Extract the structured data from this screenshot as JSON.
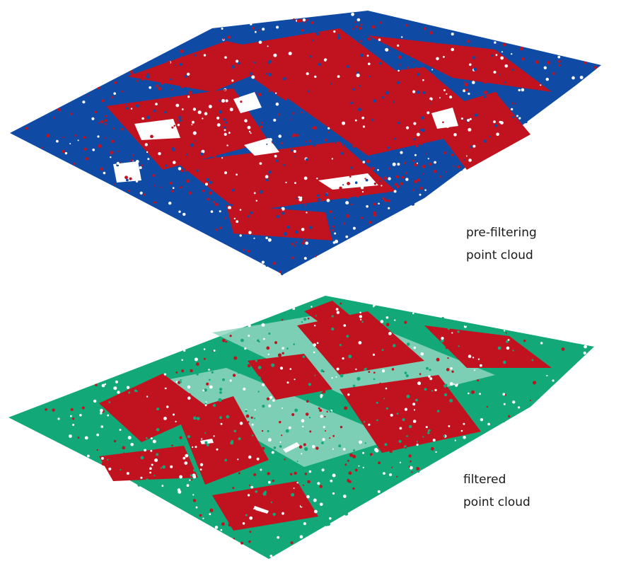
{
  "colors": {
    "ground": "#0f4aa5",
    "object": "#c1121f",
    "filtered_ground": "#12a878",
    "background": "#ffffff"
  },
  "panels": [
    {
      "id": "pre-filtering",
      "caption_line1": "pre-filtering",
      "caption_line2": "point cloud",
      "ground_color": "#0f4aa5",
      "object_color": "#c1121f"
    },
    {
      "id": "filtered",
      "caption_line1": "filtered",
      "caption_line2": "point cloud",
      "ground_color": "#12a878",
      "object_color": "#c1121f"
    }
  ]
}
